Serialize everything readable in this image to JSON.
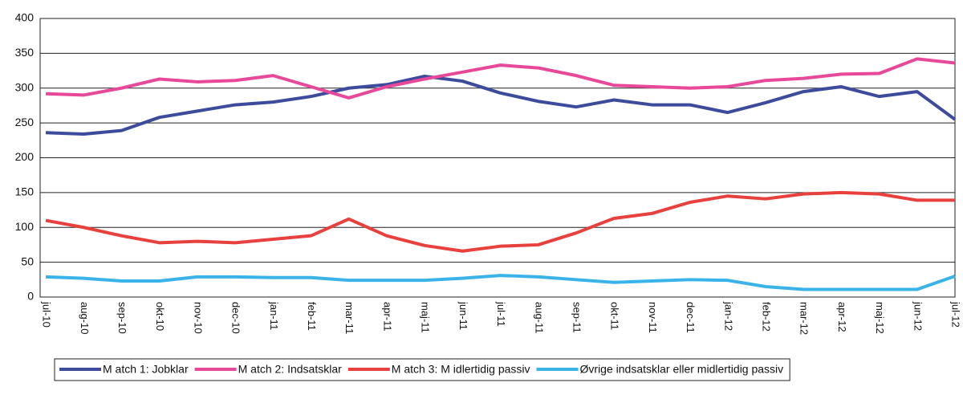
{
  "chart_data": {
    "type": "line",
    "categories": [
      "jul-10",
      "aug-10",
      "sep-10",
      "okt-10",
      "nov-10",
      "dec-10",
      "jan-11",
      "feb-11",
      "mar-11",
      "apr-11",
      "maj-11",
      "jun-11",
      "jul-11",
      "aug-11",
      "sep-11",
      "okt-11",
      "nov-11",
      "dec-11",
      "jan-12",
      "feb-12",
      "mar-12",
      "apr-12",
      "maj-12",
      "jun-12",
      "jul-12"
    ],
    "series": [
      {
        "name": "M atch 1: Jobklar",
        "color": "#3c4b9b",
        "values": [
          236,
          234,
          239,
          258,
          267,
          276,
          280,
          288,
          300,
          305,
          317,
          310,
          293,
          281,
          273,
          283,
          276,
          276,
          265,
          279,
          295,
          302,
          288,
          295,
          255
        ]
      },
      {
        "name": "M atch 2: Indsatsklar",
        "color": "#e8489a",
        "values": [
          292,
          290,
          300,
          313,
          309,
          311,
          318,
          302,
          286,
          302,
          313,
          323,
          333,
          329,
          318,
          304,
          302,
          300,
          302,
          311,
          314,
          320,
          321,
          342,
          336
        ]
      },
      {
        "name": "M atch 3: M idlertidig passiv",
        "color": "#e8403c",
        "values": [
          110,
          100,
          88,
          78,
          80,
          78,
          83,
          88,
          112,
          88,
          74,
          66,
          73,
          75,
          92,
          113,
          120,
          136,
          145,
          141,
          148,
          150,
          148,
          139,
          139
        ]
      },
      {
        "name": "Øvrige indsatsklar eller midlertidig passiv",
        "color": "#3ab4e8",
        "values": [
          29,
          27,
          23,
          23,
          29,
          29,
          28,
          28,
          24,
          24,
          24,
          27,
          31,
          29,
          25,
          21,
          23,
          25,
          24,
          15,
          11,
          11,
          11,
          11,
          30
        ]
      }
    ],
    "ylim": [
      0,
      400
    ],
    "yticks": [
      0,
      50,
      100,
      150,
      200,
      250,
      300,
      350,
      400
    ],
    "grid": true,
    "legend": "bottom"
  }
}
